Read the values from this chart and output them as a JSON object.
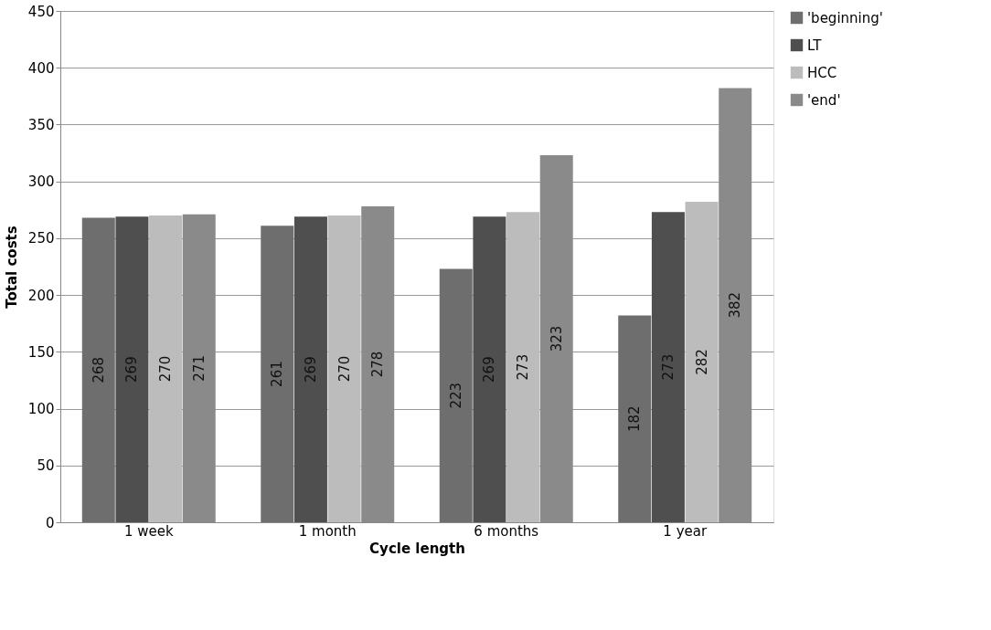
{
  "chart_data": {
    "type": "bar",
    "xlabel": "Cycle length",
    "ylabel": "Total costs",
    "categories": [
      "1 week",
      "1 month",
      "6 months",
      "1 year"
    ],
    "series": [
      {
        "name": "'beginning'",
        "color": "#6e6e6e",
        "values": [
          268,
          261,
          223,
          182
        ]
      },
      {
        "name": "LT",
        "color": "#4f4f4f",
        "values": [
          269,
          269,
          269,
          273
        ]
      },
      {
        "name": "HCC",
        "color": "#bcbcbc",
        "values": [
          270,
          270,
          273,
          282
        ]
      },
      {
        "name": "'end'",
        "color": "#8a8a8a",
        "values": [
          271,
          278,
          323,
          382
        ]
      }
    ],
    "ylim": [
      0,
      450
    ],
    "yticks": [
      0,
      50,
      100,
      150,
      200,
      250,
      300,
      350,
      400,
      450
    ],
    "grid": "y",
    "legend": "right",
    "data_labels": true
  }
}
